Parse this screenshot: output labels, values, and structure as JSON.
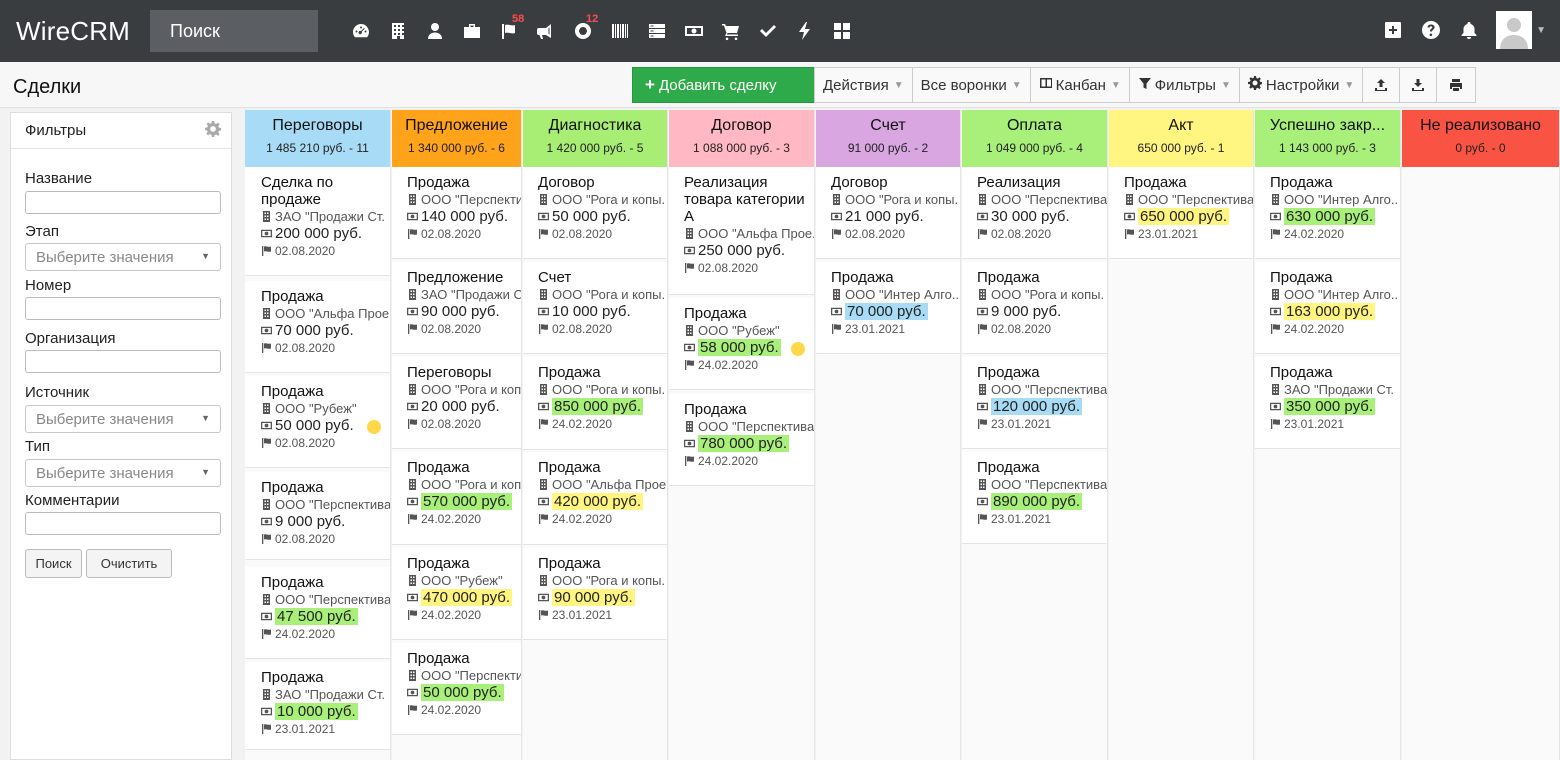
{
  "app": {
    "brand": "WireCRM",
    "search_placeholder": "Поиск"
  },
  "nav": {
    "icons": [
      {
        "name": "dashboard-icon"
      },
      {
        "name": "building-icon"
      },
      {
        "name": "user-icon"
      },
      {
        "name": "briefcase-icon"
      },
      {
        "name": "flag-icon",
        "badge": "58"
      },
      {
        "name": "megaphone-icon"
      },
      {
        "name": "lifebuoy-icon",
        "badge": "12"
      },
      {
        "name": "barcode-icon"
      },
      {
        "name": "server-icon"
      },
      {
        "name": "money-icon"
      },
      {
        "name": "cart-icon"
      },
      {
        "name": "check-icon"
      },
      {
        "name": "lightning-icon"
      },
      {
        "name": "grid-icon"
      }
    ],
    "right_icons": [
      "plus-square-icon",
      "help-icon",
      "bell-icon",
      "avatar"
    ]
  },
  "page": {
    "title": "Сделки"
  },
  "toolbar": {
    "add_label": "Добавить сделку",
    "actions_label": "Действия",
    "funnels_label": "Все воронки",
    "kanban_label": "Канбан",
    "filters_label": "Фильтры",
    "settings_label": "Настройки"
  },
  "filters": {
    "title": "Фильтры",
    "name_label": "Название",
    "stage_label": "Этап",
    "stage_placeholder": "Выберите значения",
    "number_label": "Номер",
    "org_label": "Организация",
    "source_label": "Источник",
    "source_placeholder": "Выберите значения",
    "type_label": "Тип",
    "type_placeholder": "Выберите значения",
    "comments_label": "Комментарии",
    "search_button": "Поиск",
    "clear_button": "Очистить"
  },
  "colors": {
    "Переговоры": "#a8dbf5",
    "Предложение": "#ffa31a",
    "Диагностика": "#a9ee74",
    "Договор": "#ffb8c4",
    "Счет": "#d9a6e2",
    "Оплата": "#a9f07a",
    "Акт": "#fff580",
    "Успешно закрыто": "#a9f07a",
    "Не реализовано": "#f95443",
    "hl_green": "#a9f07a",
    "hl_yellow": "#fff580",
    "hl_blue": "#a8dbf5"
  },
  "columns": [
    {
      "title": "Переговоры",
      "summary": "1 485 210 руб. - 11",
      "cards": [
        {
          "title": "Сделка по продаже",
          "org": "ЗАО \"Продажи Ст.",
          "sum": "200 000 руб.",
          "date": "02.08.2020"
        },
        {
          "title": "Продажа",
          "org": "ООО \"Альфа Прое.",
          "sum": "70 000 руб.",
          "date": "02.08.2020"
        },
        {
          "title": "Продажа",
          "org": "ООО \"Рубеж\"",
          "sum": "50 000 руб.",
          "date": "02.08.2020"
        },
        {
          "title": "Продажа",
          "org": "ООО \"Перспектива",
          "sum": "9 000 руб.",
          "date": "02.08.2020"
        },
        {
          "title": "Продажа",
          "org": "ООО \"Перспектива",
          "sum": "47 500 руб.",
          "date": "24.02.2020"
        },
        {
          "title": "Продажа",
          "org": "ЗАО \"Продажи Ст.",
          "sum": "10 000 руб.",
          "date": "23.01.2021"
        }
      ]
    },
    {
      "title": "Предложение",
      "summary": "1 340 000 руб. - 6",
      "cards": [
        {
          "title": "Продажа",
          "org": "ООО \"Перспекти",
          "sum": "140 000 руб.",
          "date": "02.08.2020"
        },
        {
          "title": "Предложение",
          "org": "ЗАО \"Продажи С",
          "sum": "90 000 руб.",
          "date": "02.08.2020"
        },
        {
          "title": "Переговоры",
          "org": "ООО \"Рога и коп",
          "sum": "20 000 руб.",
          "date": "02.08.2020"
        },
        {
          "title": "Продажа",
          "org": "ООО \"Рога и коп",
          "sum": "570 000 руб.",
          "date": "24.02.2020"
        },
        {
          "title": "Продажа",
          "org": "ООО \"Рубеж\"",
          "sum": "470 000 руб.",
          "date": "24.02.2020"
        },
        {
          "title": "Продажа",
          "org": "ООО \"Перспекти",
          "sum": "50 000 руб.",
          "date": "24.02.2020"
        }
      ]
    },
    {
      "title": "Диагностика",
      "summary": "1 420 000 руб. - 5",
      "cards": [
        {
          "title": "Договор",
          "org": "ООО \"Рога и копы.",
          "sum": "50 000 руб.",
          "date": "02.08.2020"
        },
        {
          "title": "Счет",
          "org": "ООО \"Рога и копы.",
          "sum": "10 000 руб.",
          "date": "02.08.2020"
        },
        {
          "title": "Продажа",
          "org": "ООО \"Рога и копы.",
          "sum": "850 000 руб.",
          "date": "24.02.2020"
        },
        {
          "title": "Продажа",
          "org": "ООО \"Альфа Прое.",
          "sum": "420 000 руб.",
          "date": "24.02.2020"
        },
        {
          "title": "Продажа",
          "org": "ООО \"Рога и копы.",
          "sum": "90 000 руб.",
          "date": "23.01.2021"
        }
      ]
    },
    {
      "title": "Договор",
      "summary": "1 088 000 руб. - 3",
      "cards": [
        {
          "title": "Реализация товара категории А",
          "org": "ООО \"Альфа Прое.",
          "sum": "250 000 руб.",
          "date": "02.08.2020"
        },
        {
          "title": "Продажа",
          "org": "ООО \"Рубеж\"",
          "sum": "58 000 руб.",
          "date": "24.02.2020"
        },
        {
          "title": "Продажа",
          "org": "ООО \"Перспектива",
          "sum": "780 000 руб.",
          "date": "24.02.2020"
        }
      ]
    },
    {
      "title": "Счет",
      "summary": "91 000 руб. - 2",
      "cards": [
        {
          "title": "Договор",
          "org": "ООО \"Рога и копы.",
          "sum": "21 000 руб.",
          "date": "02.08.2020"
        },
        {
          "title": "Продажа",
          "org": "ООО \"Интер Алго..",
          "sum": "70 000 руб.",
          "date": "23.01.2021"
        }
      ]
    },
    {
      "title": "Оплата",
      "summary": "1 049 000 руб. - 4",
      "cards": [
        {
          "title": "Реализация",
          "org": "ООО \"Перспектива",
          "sum": "30 000 руб.",
          "date": "02.08.2020"
        },
        {
          "title": "Продажа",
          "org": "ООО \"Рога и копы.",
          "sum": "9 000 руб.",
          "date": "02.08.2020"
        },
        {
          "title": "Продажа",
          "org": "ООО \"Перспектива",
          "sum": "120 000 руб.",
          "date": "23.01.2021"
        },
        {
          "title": "Продажа",
          "org": "ООО \"Перспектива",
          "sum": "890 000 руб.",
          "date": "23.01.2021"
        }
      ]
    },
    {
      "title": "Акт",
      "summary": "650 000 руб. - 1",
      "cards": [
        {
          "title": "Продажа",
          "org": "ООО \"Перспектива",
          "sum": "650 000 руб.",
          "date": "23.01.2021"
        }
      ]
    },
    {
      "title": "Успешно закр...",
      "summary": "1 143 000 руб. - 3",
      "cards": [
        {
          "title": "Продажа",
          "org": "ООО \"Интер Алго..",
          "sum": "630 000 руб.",
          "date": "24.02.2020"
        },
        {
          "title": "Продажа",
          "org": "ООО \"Интер Алго..",
          "sum": "163 000 руб.",
          "date": "24.02.2020"
        },
        {
          "title": "Продажа",
          "org": "ЗАО \"Продажи Ст.",
          "sum": "350 000 руб.",
          "date": "23.01.2021"
        }
      ]
    },
    {
      "title": "Не реализовано",
      "summary": "0 руб. - 0",
      "cards": []
    }
  ]
}
